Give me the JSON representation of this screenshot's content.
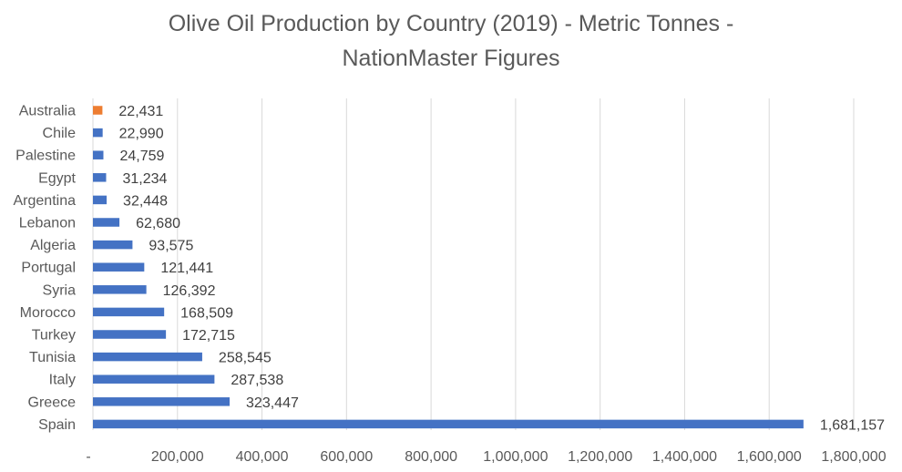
{
  "chart_data": {
    "type": "bar",
    "orientation": "horizontal",
    "title_lines": [
      "Olive Oil Production by Country (2019) - Metric Tonnes -",
      "NationMaster Figures"
    ],
    "categories": [
      "Australia",
      "Chile",
      "Palestine",
      "Egypt",
      "Argentina",
      "Lebanon",
      "Algeria",
      "Portugal",
      "Syria",
      "Morocco",
      "Turkey",
      "Tunisia",
      "Italy",
      "Greece",
      "Spain"
    ],
    "values": [
      22431,
      22990,
      24759,
      31234,
      32448,
      62680,
      93575,
      121441,
      126392,
      168509,
      172715,
      258545,
      287538,
      323447,
      1681157
    ],
    "data_labels": [
      "22,431",
      "22,990",
      "24,759",
      "31,234",
      "32,448",
      "62,680",
      "93,575",
      "121,441",
      "126,392",
      "168,509",
      "172,715",
      "258,545",
      "287,538",
      "323,447",
      "1,681,157"
    ],
    "bar_colors": [
      "#ED7D31",
      "#4472C4",
      "#4472C4",
      "#4472C4",
      "#4472C4",
      "#4472C4",
      "#4472C4",
      "#4472C4",
      "#4472C4",
      "#4472C4",
      "#4472C4",
      "#4472C4",
      "#4472C4",
      "#4472C4",
      "#4472C4"
    ],
    "xlim": [
      0,
      1800000
    ],
    "x_ticks": [
      0,
      200000,
      400000,
      600000,
      800000,
      1000000,
      1200000,
      1400000,
      1600000,
      1800000
    ],
    "x_tick_labels": [
      "-",
      "200,000",
      "400,000",
      "600,000",
      "800,000",
      "1,000,000",
      "1,200,000",
      "1,400,000",
      "1,600,000",
      "1,800,000"
    ],
    "grid": true,
    "legend": "none",
    "gridline_color": "#D9D9D9",
    "text_color": "#595959"
  }
}
